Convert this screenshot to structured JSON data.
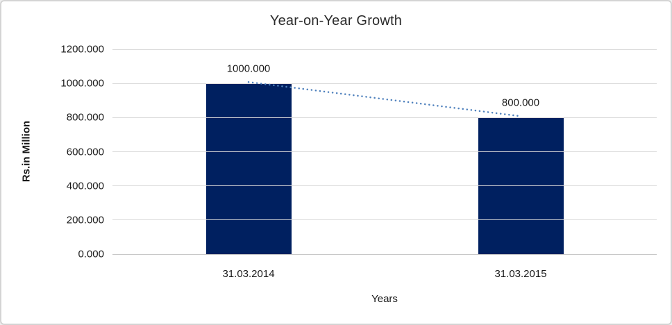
{
  "chart_data": {
    "type": "bar",
    "title": "Year-on-Year Growth",
    "categories": [
      "31.03.2014",
      "31.03.2015"
    ],
    "values": [
      1000.0,
      800.0
    ],
    "data_labels": [
      "1000.000",
      "800.000"
    ],
    "xlabel": "Years",
    "ylabel": "Rs.in Million",
    "ylim": [
      0,
      1200
    ],
    "y_tick_step": 200,
    "y_ticks": [
      "0.000",
      "200.000",
      "400.000",
      "600.000",
      "800.000",
      "1000.000",
      "1200.000"
    ],
    "grid": true,
    "legend_position": "none",
    "bar_color": "#002060",
    "trendline": {
      "style": "dotted",
      "color": "#4f81bd"
    }
  }
}
